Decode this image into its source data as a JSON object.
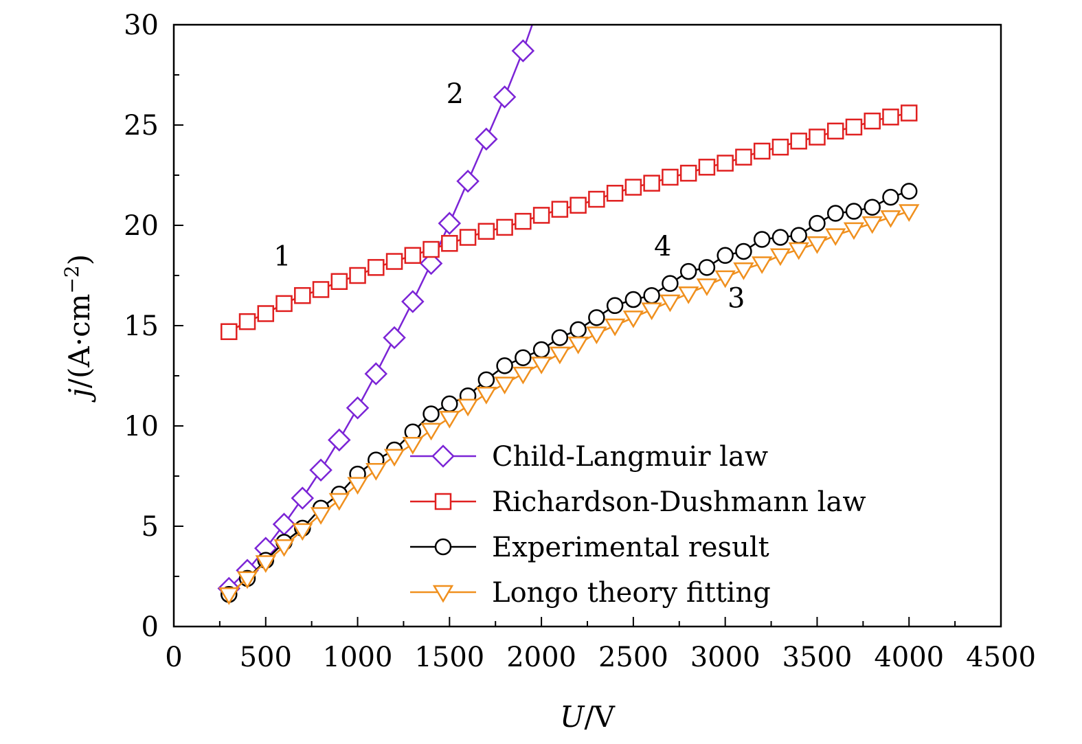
{
  "chart_data": {
    "type": "line",
    "xlabel": {
      "var": "U",
      "unit": "V"
    },
    "ylabel": {
      "var": "j",
      "unit": "(A·cm",
      "exp": "−2",
      "close": ")"
    },
    "xlim": [
      0,
      4500
    ],
    "ylim": [
      0,
      30
    ],
    "x_ticks": [
      0,
      500,
      1000,
      1500,
      2000,
      2500,
      3000,
      3500,
      4000,
      4500
    ],
    "y_ticks": [
      0,
      5,
      10,
      15,
      20,
      25,
      30
    ],
    "x_tick_labels": [
      "0",
      "500",
      "1000",
      "1500",
      "2000",
      "2500",
      "3000",
      "3500",
      "4000",
      "4500"
    ],
    "y_tick_labels": [
      "0",
      "5",
      "10",
      "15",
      "20",
      "25",
      "30"
    ],
    "grid": false,
    "legend_position": "bottom-right",
    "series": [
      {
        "name": "Child-Langmuir law",
        "color": "#7b24d6",
        "marker": "diamond",
        "x": [
          300,
          400,
          500,
          600,
          700,
          800,
          900,
          1000,
          1100,
          1200,
          1300,
          1400,
          1500,
          1600,
          1700,
          1800,
          1900
        ],
        "y": [
          1.9,
          2.8,
          3.9,
          5.1,
          6.4,
          7.8,
          9.3,
          10.9,
          12.6,
          14.4,
          16.2,
          18.1,
          20.1,
          22.2,
          24.3,
          26.4,
          28.7
        ],
        "line_end": [
          1950,
          30
        ]
      },
      {
        "name": "Richardson-Dushmann law",
        "color": "#e02020",
        "marker": "square",
        "x": [
          300,
          400,
          500,
          600,
          700,
          800,
          900,
          1000,
          1100,
          1200,
          1300,
          1400,
          1500,
          1600,
          1700,
          1800,
          1900,
          2000,
          2100,
          2200,
          2300,
          2400,
          2500,
          2600,
          2700,
          2800,
          2900,
          3000,
          3100,
          3200,
          3300,
          3400,
          3500,
          3600,
          3700,
          3800,
          3900,
          4000
        ],
        "y": [
          14.7,
          15.2,
          15.6,
          16.1,
          16.5,
          16.8,
          17.2,
          17.5,
          17.9,
          18.2,
          18.5,
          18.8,
          19.1,
          19.4,
          19.7,
          19.9,
          20.2,
          20.5,
          20.8,
          21.0,
          21.3,
          21.6,
          21.9,
          22.1,
          22.4,
          22.6,
          22.9,
          23.1,
          23.4,
          23.7,
          23.9,
          24.2,
          24.4,
          24.7,
          24.9,
          25.2,
          25.4,
          25.6
        ]
      },
      {
        "name": "Experimental result",
        "color": "#000000",
        "marker": "circle",
        "x": [
          300,
          400,
          500,
          600,
          700,
          800,
          900,
          1000,
          1100,
          1200,
          1300,
          1400,
          1500,
          1600,
          1700,
          1800,
          1900,
          2000,
          2100,
          2200,
          2300,
          2400,
          2500,
          2600,
          2700,
          2800,
          2900,
          3000,
          3100,
          3200,
          3300,
          3400,
          3500,
          3600,
          3700,
          3800,
          3900,
          4000
        ],
        "y": [
          1.6,
          2.4,
          3.3,
          4.2,
          4.9,
          5.9,
          6.6,
          7.6,
          8.3,
          8.8,
          9.7,
          10.6,
          11.1,
          11.5,
          12.3,
          13.0,
          13.4,
          13.8,
          14.4,
          14.8,
          15.4,
          16.0,
          16.3,
          16.5,
          17.1,
          17.7,
          17.9,
          18.5,
          18.7,
          19.3,
          19.4,
          19.5,
          20.1,
          20.6,
          20.7,
          20.9,
          21.4,
          21.7
        ]
      },
      {
        "name": "Longo theory fitting",
        "color": "#f0901e",
        "marker": "triangle-down",
        "x": [
          300,
          400,
          500,
          600,
          700,
          800,
          900,
          1000,
          1100,
          1200,
          1300,
          1400,
          1500,
          1600,
          1700,
          1800,
          1900,
          2000,
          2100,
          2200,
          2300,
          2400,
          2500,
          2600,
          2700,
          2800,
          2900,
          3000,
          3100,
          3200,
          3300,
          3400,
          3500,
          3600,
          3700,
          3800,
          3900,
          4000
        ],
        "y": [
          1.6,
          2.4,
          3.2,
          4.0,
          4.8,
          5.6,
          6.3,
          7.1,
          7.8,
          8.5,
          9.1,
          9.8,
          10.4,
          11.0,
          11.6,
          12.1,
          12.6,
          13.1,
          13.6,
          14.1,
          14.6,
          15.0,
          15.4,
          15.8,
          16.2,
          16.6,
          17.0,
          17.4,
          17.8,
          18.1,
          18.5,
          18.8,
          19.1,
          19.5,
          19.8,
          20.1,
          20.4,
          20.7
        ]
      }
    ],
    "annotations": [
      {
        "text": "1",
        "x": 590,
        "y": 18.0
      },
      {
        "text": "2",
        "x": 1530,
        "y": 26.1
      },
      {
        "text": "4",
        "x": 2660,
        "y": 18.5
      },
      {
        "text": "3",
        "x": 3060,
        "y": 15.9
      }
    ]
  }
}
